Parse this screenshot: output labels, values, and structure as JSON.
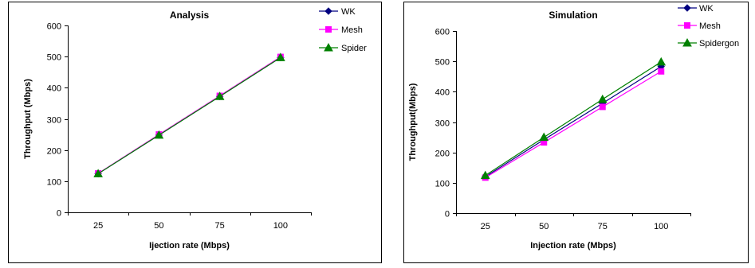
{
  "chart_data": [
    {
      "type": "line",
      "title": "Analysis",
      "xlabel": "Ijection rate (Mbps)",
      "ylabel": "Throughput (Mbps)",
      "categories": [
        "25",
        "50",
        "75",
        "100"
      ],
      "ylim": [
        0,
        600
      ],
      "yticks": [
        0,
        100,
        200,
        300,
        400,
        500,
        600
      ],
      "grid": false,
      "legend_position": "top-right",
      "series": [
        {
          "name": "WK",
          "values": [
            124,
            248,
            372,
            497
          ],
          "color": "#000080",
          "marker": "diamond"
        },
        {
          "name": "Mesh",
          "values": [
            125,
            250,
            374,
            499
          ],
          "color": "#FF00FF",
          "marker": "square"
        },
        {
          "name": "Spider",
          "values": [
            124,
            248,
            372,
            497
          ],
          "color": "#008000",
          "marker": "triangle"
        }
      ]
    },
    {
      "type": "line",
      "title": "Simulation",
      "xlabel": "Injection rate (Mbps)",
      "ylabel": "Throughput(Mbps)",
      "categories": [
        "25",
        "50",
        "75",
        "100"
      ],
      "ylim": [
        0,
        600
      ],
      "yticks": [
        0,
        100,
        200,
        300,
        400,
        500,
        600
      ],
      "grid": false,
      "legend_position": "top-right",
      "series": [
        {
          "name": "WK",
          "values": [
            120,
            242,
            362,
            483
          ],
          "color": "#000080",
          "marker": "diamond"
        },
        {
          "name": "Mesh",
          "values": [
            117,
            233,
            350,
            467
          ],
          "color": "#FF00FF",
          "marker": "square"
        },
        {
          "name": "Spidergon",
          "values": [
            124,
            250,
            375,
            498
          ],
          "color": "#008000",
          "marker": "triangle"
        }
      ]
    }
  ]
}
